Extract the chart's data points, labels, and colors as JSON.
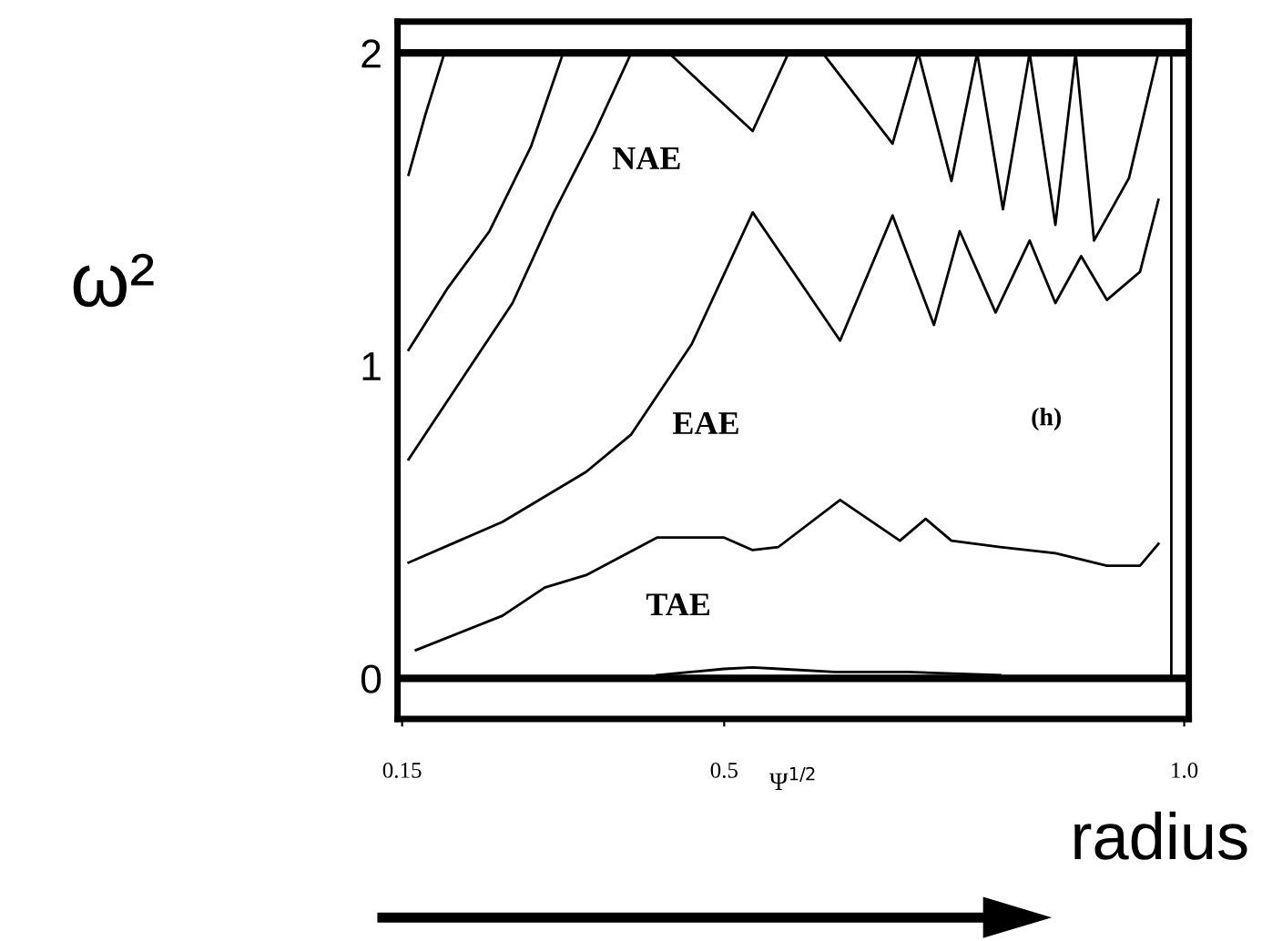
{
  "chart_data": {
    "type": "line",
    "xlabel": "Ψ$^{1/2}$",
    "ylabel": "ω²",
    "xlim": [
      0.145,
      1.005
    ],
    "ylim": [
      -0.13,
      2.1
    ],
    "xticks": [
      0.15,
      0.5,
      {
        "value": 1.0,
        "label": "1.0"
      }
    ],
    "yticks": [
      0,
      1,
      2
    ],
    "grid": false,
    "marker": "none",
    "line_style": "solid",
    "series": [
      {
        "color": "#000000",
        "x": [
          0.157,
          0.175,
          0.196
        ],
        "values": [
          1.61,
          1.8,
          2.0
        ]
      },
      {
        "color": "#000000",
        "x": [
          0.157,
          0.2,
          0.245,
          0.29,
          0.325
        ],
        "values": [
          1.05,
          1.25,
          1.43,
          1.7,
          2.0
        ]
      },
      {
        "color": "#000000",
        "x": [
          0.157,
          0.227,
          0.27,
          0.315,
          0.36,
          0.399
        ],
        "values": [
          0.7,
          1.01,
          1.2,
          1.49,
          1.75,
          2.0
        ]
      },
      {
        "color": "#000000",
        "x": [
          0.157,
          0.259,
          0.35,
          0.399,
          0.465,
          0.531,
          0.626,
          0.683,
          0.728,
          0.756,
          0.795,
          0.832,
          0.86,
          0.888,
          0.916,
          0.952,
          0.972
        ],
        "values": [
          0.37,
          0.5,
          0.66,
          0.78,
          1.07,
          1.49,
          1.08,
          1.48,
          1.13,
          1.43,
          1.17,
          1.4,
          1.2,
          1.35,
          1.21,
          1.3,
          1.53
        ]
      },
      {
        "color": "#000000",
        "x": [
          0.44,
          0.476,
          0.531,
          0.57,
          0.607,
          0.683,
          0.711,
          0.747,
          0.775,
          0.803,
          0.832,
          0.86,
          0.882,
          0.902,
          0.94,
          0.972
        ],
        "values": [
          2.0,
          1.9,
          1.75,
          2.0,
          2.0,
          1.71,
          2.0,
          1.59,
          2.0,
          1.5,
          2.0,
          1.45,
          2.0,
          1.4,
          1.6,
          2.0
        ]
      },
      {
        "color": "#000000",
        "x": [
          0.165,
          0.259,
          0.305,
          0.35,
          0.427,
          0.5,
          0.531,
          0.559,
          0.626,
          0.691,
          0.719,
          0.747,
          0.8,
          0.86,
          0.916,
          0.952,
          0.972
        ],
        "values": [
          0.09,
          0.2,
          0.29,
          0.33,
          0.45,
          0.45,
          0.41,
          0.42,
          0.57,
          0.44,
          0.51,
          0.44,
          0.42,
          0.4,
          0.36,
          0.36,
          0.43
        ]
      },
      {
        "color": "#000000",
        "x": [
          0.986,
          0.986
        ],
        "values": [
          0.0,
          2.0
        ]
      },
      {
        "color": "#000000",
        "x": [
          0.427,
          0.5,
          0.531,
          0.56,
          0.62,
          0.7,
          0.8
        ],
        "values": [
          0.01,
          0.03,
          0.035,
          0.03,
          0.02,
          0.02,
          0.01
        ]
      }
    ],
    "ref_lines": [
      {
        "axis": "y",
        "value": 0,
        "color": "#000000"
      },
      {
        "axis": "y",
        "value": 2,
        "color": "#000000"
      }
    ],
    "annotations": [
      "NAE",
      "EAE",
      "TAE",
      "(h)",
      "radius"
    ]
  }
}
